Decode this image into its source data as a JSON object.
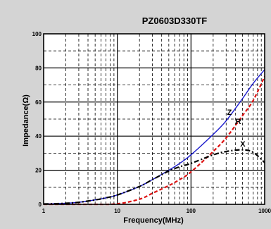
{
  "chart_data": {
    "type": "line",
    "title": "PZ0603D330TF",
    "xlabel": "Frequency(MHz)",
    "ylabel": "Impedance(Ω)",
    "xscale": "log",
    "xlim": [
      1,
      1000
    ],
    "ylim": [
      0,
      100
    ],
    "x_ticks": [
      "1",
      "10",
      "100",
      "1000"
    ],
    "y_ticks": [
      "0",
      "20",
      "40",
      "60",
      "80",
      "100"
    ],
    "grid": true,
    "series": [
      {
        "name": "Z",
        "color": "#1a1acc",
        "style": "solid",
        "x": [
          1,
          2,
          3,
          5,
          7,
          10,
          20,
          30,
          50,
          70,
          100,
          200,
          300,
          500,
          700,
          1000
        ],
        "y": [
          0.2,
          0.6,
          1.2,
          2.6,
          3.8,
          5.5,
          10.5,
          14.5,
          20,
          24,
          29,
          41,
          49,
          62,
          71,
          79
        ]
      },
      {
        "name": "R",
        "color": "#dd1111",
        "style": "dashed",
        "x": [
          1,
          3,
          5,
          10,
          20,
          30,
          50,
          70,
          100,
          200,
          300,
          500,
          700,
          1000
        ],
        "y": [
          0,
          0,
          0,
          0.3,
          3,
          6.5,
          11,
          14.5,
          19,
          31,
          39,
          52,
          61,
          75
        ]
      },
      {
        "name": "X",
        "color": "#000000",
        "style": "dashdot",
        "x": [
          1,
          2,
          3,
          5,
          7,
          10,
          20,
          30,
          50,
          70,
          100,
          200,
          300,
          500,
          700,
          1000
        ],
        "y": [
          0.2,
          0.6,
          1.2,
          2.6,
          3.8,
          5.5,
          10.5,
          14.5,
          19.5,
          22,
          24,
          29,
          31,
          32,
          30.5,
          24.5
        ]
      }
    ]
  }
}
